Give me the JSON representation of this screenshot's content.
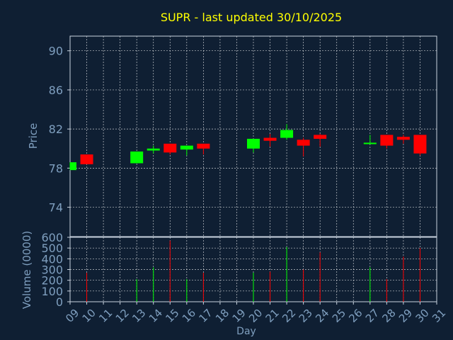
{
  "colors": {
    "background": "#0f1f33",
    "axis": "#c9d3df",
    "label": "#7f9fbf",
    "title": "#ffff00",
    "up": "#00ff00",
    "down": "#ff0000"
  },
  "chart_data": [
    {
      "type": "candlestick",
      "title": "SUPR - last updated 30/10/2025",
      "ylabel": "Price",
      "ylim": [
        71,
        91.5
      ],
      "yticks": [
        90,
        86,
        82,
        78,
        74
      ],
      "xlim": [
        9,
        31
      ],
      "grid": true,
      "candles": [
        {
          "day": 9,
          "open": 77.8,
          "close": 78.6,
          "high": 78.6,
          "low": 77.8
        },
        {
          "day": 10,
          "open": 79.4,
          "close": 78.4,
          "high": 79.4,
          "low": 78.4
        },
        {
          "day": 13,
          "open": 78.5,
          "close": 79.7,
          "high": 79.7,
          "low": 78.5
        },
        {
          "day": 14,
          "open": 79.8,
          "close": 80.0,
          "high": 80.3,
          "low": 79.5
        },
        {
          "day": 15,
          "open": 80.5,
          "close": 79.6,
          "high": 80.5,
          "low": 79.4
        },
        {
          "day": 16,
          "open": 79.9,
          "close": 80.3,
          "high": 80.3,
          "low": 79.3
        },
        {
          "day": 17,
          "open": 80.5,
          "close": 80.0,
          "high": 80.5,
          "low": 79.4
        },
        {
          "day": 20,
          "open": 80.0,
          "close": 81.0,
          "high": 81.0,
          "low": 79.6
        },
        {
          "day": 21,
          "open": 81.1,
          "close": 80.8,
          "high": 81.5,
          "low": 80.2
        },
        {
          "day": 22,
          "open": 81.1,
          "close": 81.9,
          "high": 82.5,
          "low": 80.9
        },
        {
          "day": 23,
          "open": 80.9,
          "close": 80.3,
          "high": 81.1,
          "low": 79.2
        },
        {
          "day": 24,
          "open": 81.4,
          "close": 81.0,
          "high": 81.5,
          "low": 80.2
        },
        {
          "day": 27,
          "open": 80.5,
          "close": 80.6,
          "high": 81.4,
          "low": 80.5
        },
        {
          "day": 28,
          "open": 81.4,
          "close": 80.3,
          "high": 81.4,
          "low": 80.0
        },
        {
          "day": 29,
          "open": 81.2,
          "close": 80.9,
          "high": 81.4,
          "low": 80.5
        },
        {
          "day": 30,
          "open": 81.4,
          "close": 79.5,
          "high": 81.4,
          "low": 79.3
        }
      ]
    },
    {
      "type": "bar",
      "ylabel": "Volume (0000)",
      "xlabel": "Day",
      "ylim": [
        0,
        600
      ],
      "yticks": [
        0,
        100,
        200,
        300,
        400,
        500,
        600
      ],
      "xticks": [
        "09",
        "10",
        "11",
        "12",
        "13",
        "14",
        "15",
        "16",
        "17",
        "18",
        "19",
        "20",
        "21",
        "22",
        "23",
        "24",
        "25",
        "26",
        "27",
        "28",
        "29",
        "30",
        "31"
      ],
      "bars": [
        {
          "day": 10,
          "value": 270,
          "direction": "down"
        },
        {
          "day": 13,
          "value": 210,
          "direction": "up"
        },
        {
          "day": 14,
          "value": 320,
          "direction": "up"
        },
        {
          "day": 15,
          "value": 570,
          "direction": "down"
        },
        {
          "day": 16,
          "value": 210,
          "direction": "up"
        },
        {
          "day": 17,
          "value": 270,
          "direction": "down"
        },
        {
          "day": 20,
          "value": 270,
          "direction": "up"
        },
        {
          "day": 21,
          "value": 280,
          "direction": "down"
        },
        {
          "day": 22,
          "value": 510,
          "direction": "up"
        },
        {
          "day": 23,
          "value": 300,
          "direction": "down"
        },
        {
          "day": 24,
          "value": 460,
          "direction": "down"
        },
        {
          "day": 27,
          "value": 320,
          "direction": "up"
        },
        {
          "day": 28,
          "value": 210,
          "direction": "down"
        },
        {
          "day": 29,
          "value": 420,
          "direction": "down"
        },
        {
          "day": 30,
          "value": 500,
          "direction": "down"
        }
      ]
    }
  ]
}
